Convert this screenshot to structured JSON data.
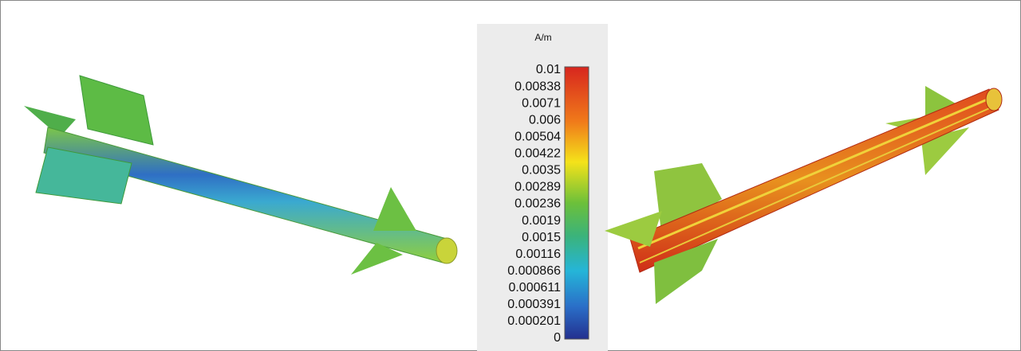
{
  "colorbar": {
    "unit": "A/m",
    "ticks": [
      0.01,
      0.00838,
      0.0071,
      0.006,
      0.00504,
      0.00422,
      0.0035,
      0.00289,
      0.00236,
      0.0019,
      0.0015,
      0.00116,
      0.000866,
      0.000611,
      0.000391,
      0.000201,
      0
    ]
  }
}
